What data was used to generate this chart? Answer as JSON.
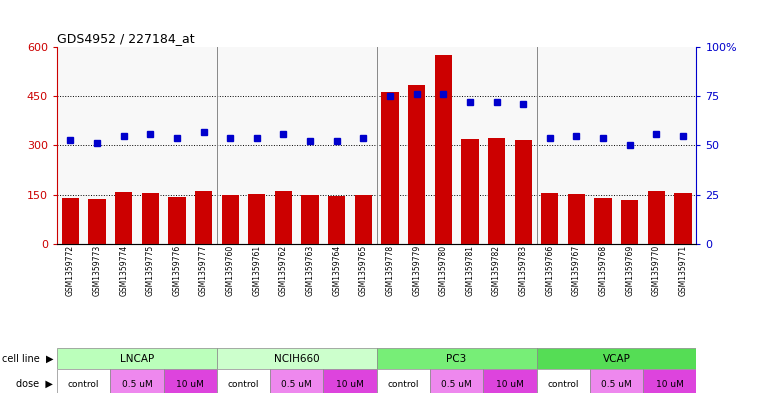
{
  "title": "GDS4952 / 227184_at",
  "samples": [
    "GSM1359772",
    "GSM1359773",
    "GSM1359774",
    "GSM1359775",
    "GSM1359776",
    "GSM1359777",
    "GSM1359760",
    "GSM1359761",
    "GSM1359762",
    "GSM1359763",
    "GSM1359764",
    "GSM1359765",
    "GSM1359778",
    "GSM1359779",
    "GSM1359780",
    "GSM1359781",
    "GSM1359782",
    "GSM1359783",
    "GSM1359766",
    "GSM1359767",
    "GSM1359768",
    "GSM1359769",
    "GSM1359770",
    "GSM1359771"
  ],
  "counts": [
    140,
    135,
    158,
    155,
    143,
    160,
    148,
    153,
    162,
    148,
    147,
    148,
    462,
    483,
    577,
    320,
    322,
    318,
    155,
    152,
    138,
    133,
    162,
    155
  ],
  "percentiles": [
    53,
    51,
    55,
    56,
    54,
    57,
    54,
    54,
    56,
    52,
    52,
    54,
    75,
    76,
    76,
    72,
    72,
    71,
    54,
    55,
    54,
    50,
    56,
    55
  ],
  "bar_color": "#cc0000",
  "dot_color": "#0000cc",
  "cell_lines": [
    {
      "label": "LNCAP",
      "start": 0,
      "end": 6,
      "color": "#bbffbb"
    },
    {
      "label": "NCIH660",
      "start": 6,
      "end": 12,
      "color": "#ccffcc"
    },
    {
      "label": "PC3",
      "start": 12,
      "end": 18,
      "color": "#77ee77"
    },
    {
      "label": "VCAP",
      "start": 18,
      "end": 24,
      "color": "#55dd55"
    }
  ],
  "dose_groups": [
    {
      "label": "control",
      "start": 0,
      "end": 2,
      "color": "#ffffff"
    },
    {
      "label": "0.5 uM",
      "start": 2,
      "end": 4,
      "color": "#ee88ee"
    },
    {
      "label": "10 uM",
      "start": 4,
      "end": 6,
      "color": "#ee44ee"
    },
    {
      "label": "control",
      "start": 6,
      "end": 8,
      "color": "#ffffff"
    },
    {
      "label": "0.5 uM",
      "start": 8,
      "end": 10,
      "color": "#ee88ee"
    },
    {
      "label": "10 uM",
      "start": 10,
      "end": 12,
      "color": "#ee44ee"
    },
    {
      "label": "control",
      "start": 12,
      "end": 14,
      "color": "#ffffff"
    },
    {
      "label": "0.5 uM",
      "start": 14,
      "end": 16,
      "color": "#ee88ee"
    },
    {
      "label": "10 uM",
      "start": 16,
      "end": 18,
      "color": "#ee44ee"
    },
    {
      "label": "control",
      "start": 18,
      "end": 20,
      "color": "#ffffff"
    },
    {
      "label": "0.5 uM",
      "start": 20,
      "end": 22,
      "color": "#ee88ee"
    },
    {
      "label": "10 uM",
      "start": 22,
      "end": 24,
      "color": "#ee44ee"
    }
  ],
  "ylim_left": [
    0,
    600
  ],
  "ylim_right": [
    0,
    100
  ],
  "yticks_left": [
    0,
    150,
    300,
    450,
    600
  ],
  "yticks_right": [
    0,
    25,
    50,
    75,
    100
  ],
  "ytick_labels_right": [
    "0",
    "25",
    "50",
    "75",
    "100%"
  ],
  "hlines": [
    150,
    300,
    450
  ],
  "background_color": "#ffffff",
  "plot_bg": "#f8f8f8",
  "legend_count_color": "#cc0000",
  "legend_dot_color": "#0000cc"
}
